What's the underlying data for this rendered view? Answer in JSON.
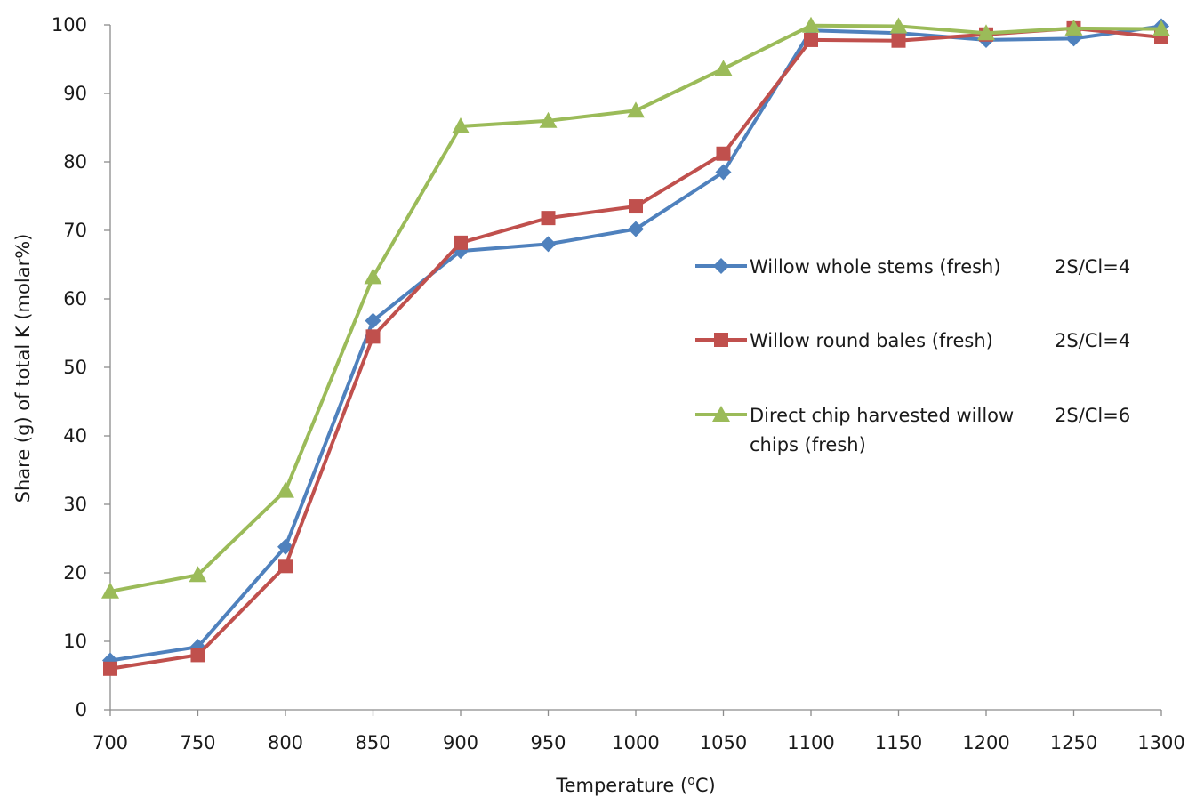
{
  "chart_data": {
    "type": "line",
    "title": "",
    "xlabel": "Temperature (",
    "xlabel_sup": "o",
    "xlabel_suffix": "C)",
    "ylabel": "Share (g) of total K (molar%)",
    "x": [
      700,
      750,
      800,
      850,
      900,
      950,
      1000,
      1050,
      1100,
      1150,
      1200,
      1250,
      1300
    ],
    "xlim": [
      700,
      1300
    ],
    "ylim": [
      0,
      100
    ],
    "yticks": [
      0,
      10,
      20,
      30,
      40,
      50,
      60,
      70,
      80,
      90,
      100
    ],
    "grid": false,
    "legend_position": "right",
    "series": [
      {
        "name_lines": [
          "Willow whole stems (fresh)"
        ],
        "suffix": "2S/Cl=4",
        "color": "#4F81BD",
        "marker": "diamond",
        "values": [
          7.2,
          9.2,
          23.8,
          56.8,
          67,
          68,
          70.2,
          78.5,
          99.2,
          98.8,
          97.8,
          98,
          99.8
        ]
      },
      {
        "name_lines": [
          "Willow round bales (fresh)"
        ],
        "suffix": "2S/Cl=4",
        "color": "#C0504D",
        "marker": "square",
        "values": [
          6,
          8,
          21,
          54.5,
          68.2,
          71.8,
          73.5,
          81.2,
          97.8,
          97.7,
          98.6,
          99.5,
          98.2
        ]
      },
      {
        "name_lines": [
          "Direct chip harvested willow",
          "chips (fresh)"
        ],
        "suffix": "2S/Cl=6",
        "color": "#9BBB59",
        "marker": "triangle",
        "values": [
          17.3,
          19.7,
          32,
          63.2,
          85.2,
          86,
          87.5,
          93.6,
          99.9,
          99.8,
          98.8,
          99.5,
          99.4
        ]
      }
    ]
  }
}
